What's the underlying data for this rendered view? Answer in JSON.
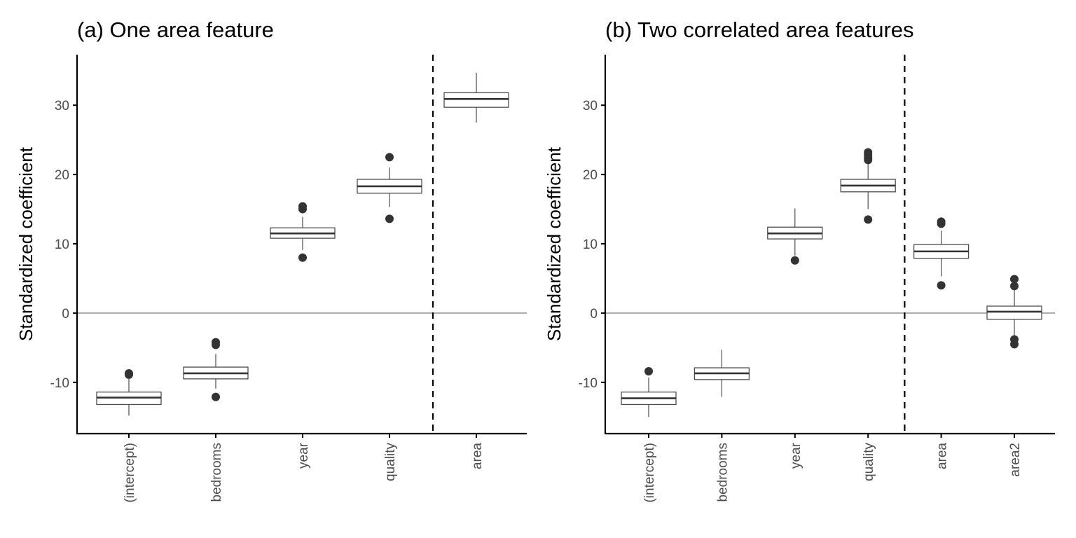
{
  "chart_data": [
    {
      "type": "boxplot",
      "title": "(a) One area feature",
      "xlabel": "",
      "ylabel": "Standardized coefficient",
      "ylim": [
        -17.4,
        37.3
      ],
      "yticks": [
        -10,
        0,
        10,
        20,
        30
      ],
      "ytick_labels": [
        "-10",
        "0",
        "10",
        "20",
        "30"
      ],
      "grid": false,
      "reference_line_y": 0,
      "separator_after_category": "quality",
      "categories": [
        "(intercept)",
        "bedrooms",
        "year",
        "quality",
        "area"
      ],
      "boxes": [
        {
          "category": "(intercept)",
          "whisker_low": -14.8,
          "q1": -13.2,
          "median": -12.2,
          "q3": -11.4,
          "whisker_high": -9.5,
          "outliers": [
            -8.7,
            -8.9
          ]
        },
        {
          "category": "bedrooms",
          "whisker_low": -10.9,
          "q1": -9.5,
          "median": -8.7,
          "q3": -7.8,
          "whisker_high": -5.9,
          "outliers": [
            -4.2,
            -4.6,
            -12.1
          ]
        },
        {
          "category": "year",
          "whisker_low": 9.1,
          "q1": 10.8,
          "median": 11.5,
          "q3": 12.3,
          "whisker_high": 13.9,
          "outliers": [
            15.4,
            15.0,
            8.0
          ]
        },
        {
          "category": "quality",
          "whisker_low": 15.3,
          "q1": 17.3,
          "median": 18.3,
          "q3": 19.3,
          "whisker_high": 21.0,
          "outliers": [
            22.5,
            13.6
          ]
        },
        {
          "category": "area",
          "whisker_low": 27.5,
          "q1": 29.7,
          "median": 30.9,
          "q3": 31.8,
          "whisker_high": 34.7,
          "outliers": []
        }
      ]
    },
    {
      "type": "boxplot",
      "title": "(b) Two correlated area features",
      "xlabel": "",
      "ylabel": "Standardized coefficient",
      "ylim": [
        -17.4,
        37.3
      ],
      "yticks": [
        -10,
        0,
        10,
        20,
        30
      ],
      "ytick_labels": [
        "-10",
        "0",
        "10",
        "20",
        "30"
      ],
      "grid": false,
      "reference_line_y": 0,
      "separator_after_category": "quality",
      "categories": [
        "(intercept)",
        "bedrooms",
        "year",
        "quality",
        "area",
        "area2"
      ],
      "boxes": [
        {
          "category": "(intercept)",
          "whisker_low": -15.0,
          "q1": -13.2,
          "median": -12.3,
          "q3": -11.4,
          "whisker_high": -9.3,
          "outliers": [
            -8.4
          ]
        },
        {
          "category": "bedrooms",
          "whisker_low": -12.1,
          "q1": -9.6,
          "median": -8.7,
          "q3": -7.9,
          "whisker_high": -5.3,
          "outliers": []
        },
        {
          "category": "year",
          "whisker_low": 8.3,
          "q1": 10.7,
          "median": 11.5,
          "q3": 12.4,
          "whisker_high": 15.1,
          "outliers": [
            7.6
          ]
        },
        {
          "category": "quality",
          "whisker_low": 15.0,
          "q1": 17.5,
          "median": 18.4,
          "q3": 19.3,
          "whisker_high": 21.5,
          "outliers": [
            23.2,
            22.8,
            22.4,
            22.1,
            13.5
          ]
        },
        {
          "category": "area",
          "whisker_low": 5.3,
          "q1": 7.9,
          "median": 8.9,
          "q3": 9.9,
          "whisker_high": 11.9,
          "outliers": [
            13.2,
            12.9,
            4.0
          ]
        },
        {
          "category": "area2",
          "whisker_low": -3.2,
          "q1": -0.9,
          "median": 0.2,
          "q3": 1.0,
          "whisker_high": 3.3,
          "outliers": [
            4.9,
            3.9,
            -3.8,
            -4.5
          ]
        }
      ]
    }
  ],
  "colors": {
    "box_outline": "#4d4d4d",
    "median": "#333333",
    "outlier": "#333333",
    "axis": "#000000",
    "tick_text": "#4d4d4d",
    "reference_line": "#aaaaaa",
    "separator": "#000000"
  }
}
